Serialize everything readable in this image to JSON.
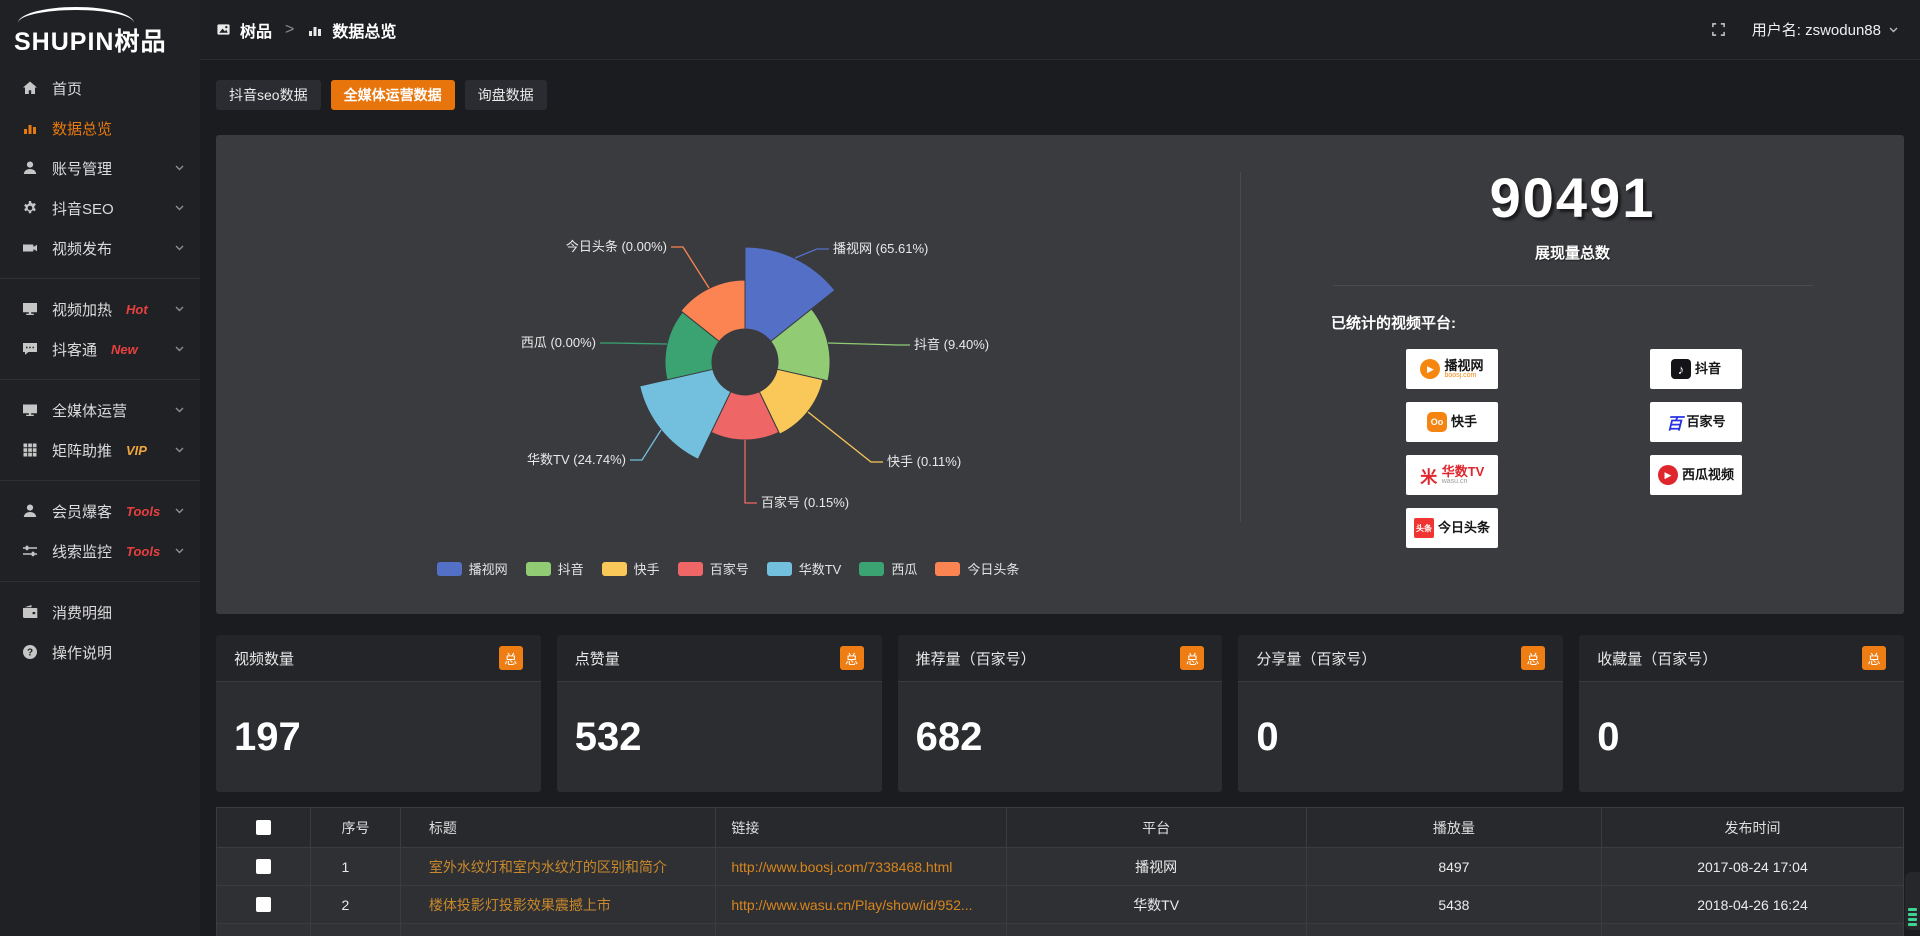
{
  "accent_color": "#e8750c",
  "topbar": {
    "breadcrumb": {
      "root": "树品",
      "separator": ">",
      "current": "数据总览"
    },
    "username": "用户名: zswodun88"
  },
  "sidebar": {
    "logo_en": "SHUPIN",
    "logo_cn": "树品",
    "items": [
      {
        "key": "home",
        "label": "首页",
        "icon": "home-icon"
      },
      {
        "key": "data-overview",
        "label": "数据总览",
        "icon": "bar-chart-icon",
        "active": true
      },
      {
        "key": "account-manage",
        "label": "账号管理",
        "icon": "user-icon",
        "chevron": true
      },
      {
        "key": "douyin-seo",
        "label": "抖音SEO",
        "icon": "gear-icon",
        "chevron": true
      },
      {
        "key": "video-publish",
        "label": "视频发布",
        "icon": "publish-icon",
        "chevron": true
      },
      {
        "divider": true
      },
      {
        "key": "video-heat",
        "label": "视频加热",
        "icon": "monitor-icon",
        "chevron": true,
        "badge": "Hot",
        "badge_color": "#e8403f"
      },
      {
        "key": "douketong",
        "label": "抖客通",
        "icon": "chat-icon",
        "chevron": true,
        "badge": "New",
        "badge_color": "#e8403f"
      },
      {
        "divider": true
      },
      {
        "key": "media-ops",
        "label": "全媒体运营",
        "icon": "screen-icon",
        "chevron": true
      },
      {
        "key": "matrix-boost",
        "label": "矩阵助推",
        "icon": "grid-icon",
        "chevron": true,
        "badge": "VIP",
        "badge_color": "#f0a63c"
      },
      {
        "divider": true
      },
      {
        "key": "member-baoke",
        "label": "会员爆客",
        "icon": "person-icon",
        "chevron": true,
        "badge": "Tools",
        "badge_color": "#e8403f"
      },
      {
        "key": "clue-monitor",
        "label": "线索监控",
        "icon": "sliders-icon",
        "chevron": true,
        "badge": "Tools",
        "badge_color": "#e8403f"
      },
      {
        "divider": true
      },
      {
        "key": "consume-detail",
        "label": "消费明细",
        "icon": "wallet-icon"
      },
      {
        "key": "help",
        "label": "操作说明",
        "icon": "help-icon"
      }
    ]
  },
  "tabs": [
    {
      "key": "douyin-seo-data",
      "label": "抖音seo数据",
      "active": false
    },
    {
      "key": "media-ops-data",
      "label": "全媒体运营数据",
      "active": true
    },
    {
      "key": "inquiry-data",
      "label": "询盘数据",
      "active": false
    }
  ],
  "chart_data": {
    "type": "pie",
    "variant": "nightingale-rose",
    "legend_position": "bottom",
    "items": [
      {
        "name": "播视网",
        "value": 65.61,
        "pct": "65.61",
        "color": "#5470c6"
      },
      {
        "name": "抖音",
        "value": 9.4,
        "pct": "9.40",
        "color": "#91cc75"
      },
      {
        "name": "快手",
        "value": 0.11,
        "pct": "0.11",
        "color": "#fac858"
      },
      {
        "name": "百家号",
        "value": 0.15,
        "pct": "0.15",
        "color": "#ee6666"
      },
      {
        "name": "华数TV",
        "value": 24.74,
        "pct": "24.74",
        "color": "#73c0de"
      },
      {
        "name": "西瓜",
        "value": 0.0,
        "pct": "0.00",
        "color": "#3ba272"
      },
      {
        "name": "今日头条",
        "value": 0.0,
        "pct": "0.00",
        "color": "#fc8452"
      }
    ],
    "legend": [
      "播视网",
      "抖音",
      "快手",
      "百家号",
      "华数TV",
      "西瓜",
      "今日头条"
    ]
  },
  "summary": {
    "total": "90491",
    "total_label": "展现量总数",
    "platforms_label": "已统计的视频平台:",
    "platforms": [
      {
        "name": "播视网",
        "sub": "boosj.com",
        "icon": "boosj-icon",
        "sub_color": "#f5870f"
      },
      {
        "name": "抖音",
        "icon": "douyin-icon"
      },
      {
        "name": "快手",
        "icon": "kuaishou-icon"
      },
      {
        "name": "百家号",
        "icon": "baijiahao-icon"
      },
      {
        "name": "华数TV",
        "sub": "wasu.cn",
        "icon": "wasu-icon",
        "name_color": "#e0262d",
        "sub_color": "#9a9a9a"
      },
      {
        "name": "西瓜视频",
        "icon": "xigua-icon"
      },
      {
        "name": "今日头条",
        "icon": "toutiao-icon"
      }
    ]
  },
  "stat_cards": [
    {
      "title": "视频数量",
      "badge": "总",
      "value": "197"
    },
    {
      "title": "点赞量",
      "badge": "总",
      "value": "532"
    },
    {
      "title": "推荐量（百家号）",
      "badge": "总",
      "value": "682"
    },
    {
      "title": "分享量（百家号）",
      "badge": "总",
      "value": "0"
    },
    {
      "title": "收藏量（百家号）",
      "badge": "总",
      "value": "0"
    }
  ],
  "table": {
    "headers": [
      "序号",
      "标题",
      "链接",
      "平台",
      "播放量",
      "发布时间"
    ],
    "rows": [
      {
        "num": "1",
        "title": "室外水纹灯和室内水纹灯的区别和简介",
        "link": "http://www.boosj.com/7338468.html",
        "platform": "播视网",
        "plays": "8497",
        "time": "2017-08-24 17:04"
      },
      {
        "num": "2",
        "title": "楼体投影灯投影效果震撼上市",
        "link": "http://www.wasu.cn/Play/show/id/952...",
        "platform": "华数TV",
        "plays": "5438",
        "time": "2018-04-26 16:24"
      }
    ]
  }
}
